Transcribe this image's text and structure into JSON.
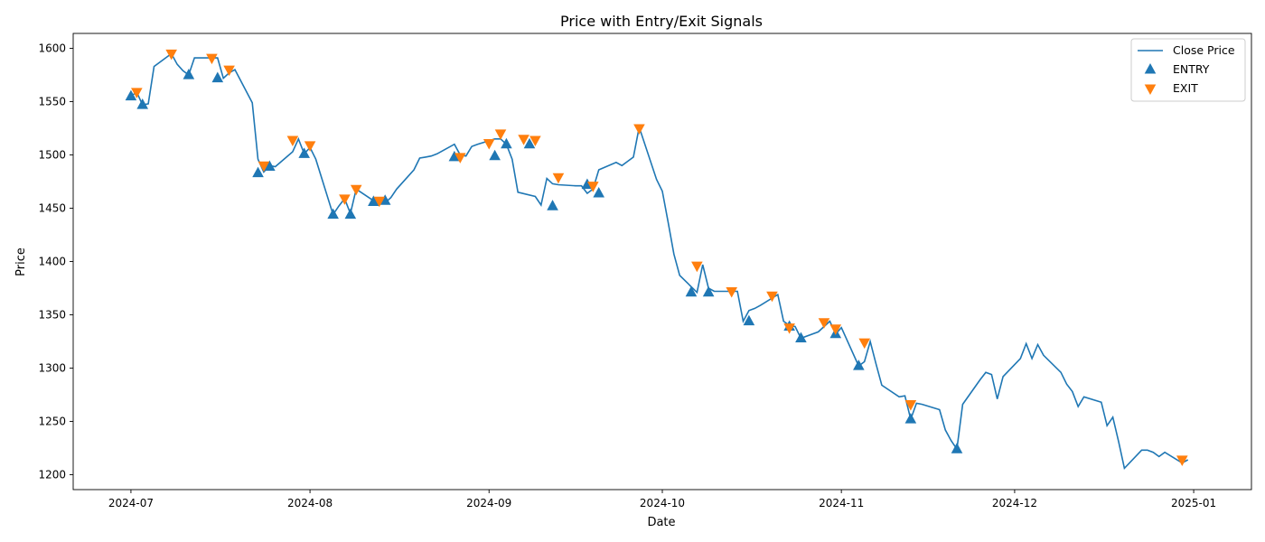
{
  "chart_data": {
    "type": "line",
    "title": "Price with Entry/Exit Signals",
    "xlabel": "Date",
    "ylabel": "Price",
    "xlim": [
      "2024-06-21",
      "2025-01-11"
    ],
    "ylim": [
      1186,
      1614
    ],
    "x_ticks": [
      "2024-07-01",
      "2024-08-01",
      "2024-09-01",
      "2024-10-01",
      "2024-11-01",
      "2024-12-01",
      "2025-01-01"
    ],
    "x_tick_labels": [
      "2024-07",
      "2024-08",
      "2024-09",
      "2024-10",
      "2024-11",
      "2024-12",
      "2025-01"
    ],
    "y_ticks": [
      1200,
      1250,
      1300,
      1350,
      1400,
      1450,
      1500,
      1550,
      1600
    ],
    "y_tick_labels": [
      "1200",
      "1250",
      "1300",
      "1350",
      "1400",
      "1450",
      "1500",
      "1550",
      "1600"
    ],
    "grid": false,
    "legend_position": "top-right",
    "colors": {
      "close": "#1f77b4",
      "entry": "#1f77b4",
      "exit": "#ff7f0e"
    },
    "series": [
      {
        "name": "Close Price",
        "kind": "line",
        "x": [
          "2024-07-01",
          "2024-07-02",
          "2024-07-03",
          "2024-07-04",
          "2024-07-05",
          "2024-07-08",
          "2024-07-09",
          "2024-07-10",
          "2024-07-11",
          "2024-07-12",
          "2024-07-15",
          "2024-07-16",
          "2024-07-17",
          "2024-07-18",
          "2024-07-19",
          "2024-07-22",
          "2024-07-23",
          "2024-07-24",
          "2024-07-25",
          "2024-07-26",
          "2024-07-29",
          "2024-07-30",
          "2024-07-31",
          "2024-08-01",
          "2024-08-02",
          "2024-08-05",
          "2024-08-06",
          "2024-08-07",
          "2024-08-08",
          "2024-08-09",
          "2024-08-12",
          "2024-08-13",
          "2024-08-14",
          "2024-08-15",
          "2024-08-16",
          "2024-08-19",
          "2024-08-20",
          "2024-08-21",
          "2024-08-22",
          "2024-08-23",
          "2024-08-26",
          "2024-08-27",
          "2024-08-28",
          "2024-08-29",
          "2024-08-30",
          "2024-09-02",
          "2024-09-03",
          "2024-09-04",
          "2024-09-05",
          "2024-09-06",
          "2024-09-09",
          "2024-09-10",
          "2024-09-11",
          "2024-09-12",
          "2024-09-13",
          "2024-09-16",
          "2024-09-17",
          "2024-09-18",
          "2024-09-19",
          "2024-09-20",
          "2024-09-23",
          "2024-09-24",
          "2024-09-25",
          "2024-09-26",
          "2024-09-27",
          "2024-09-30",
          "2024-10-01",
          "2024-10-02",
          "2024-10-03",
          "2024-10-04",
          "2024-10-07",
          "2024-10-08",
          "2024-10-09",
          "2024-10-10",
          "2024-10-11",
          "2024-10-14",
          "2024-10-15",
          "2024-10-16",
          "2024-10-17",
          "2024-10-18",
          "2024-10-21",
          "2024-10-22",
          "2024-10-23",
          "2024-10-24",
          "2024-10-25",
          "2024-10-28",
          "2024-10-29",
          "2024-10-30",
          "2024-10-31",
          "2024-11-01",
          "2024-11-04",
          "2024-11-05",
          "2024-11-06",
          "2024-11-07",
          "2024-11-08",
          "2024-11-11",
          "2024-11-12",
          "2024-11-13",
          "2024-11-14",
          "2024-11-15",
          "2024-11-18",
          "2024-11-19",
          "2024-11-20",
          "2024-11-21",
          "2024-11-22",
          "2024-11-25",
          "2024-11-26",
          "2024-11-27",
          "2024-11-28",
          "2024-11-29",
          "2024-12-02",
          "2024-12-03",
          "2024-12-04",
          "2024-12-05",
          "2024-12-06",
          "2024-12-09",
          "2024-12-10",
          "2024-12-11",
          "2024-12-12",
          "2024-12-13",
          "2024-12-16",
          "2024-12-17",
          "2024-12-18",
          "2024-12-19",
          "2024-12-20",
          "2024-12-23",
          "2024-12-24",
          "2024-12-25",
          "2024-12-26",
          "2024-12-27",
          "2024-12-30",
          "2024-12-31"
        ],
        "y": [
          1555,
          1559,
          1547,
          1548,
          1583,
          1595,
          1585,
          1579,
          1575,
          1591,
          1591,
          1591,
          1572,
          1577,
          1580,
          1549,
          1496,
          1484,
          1490,
          1489,
          1503,
          1515,
          1501,
          1507,
          1496,
          1444,
          1452,
          1459,
          1445,
          1468,
          1457,
          1457,
          1455,
          1460,
          1468,
          1486,
          1497,
          1498,
          1499,
          1501,
          1510,
          1500,
          1499,
          1508,
          1510,
          1515,
          1515,
          1510,
          1496,
          1465,
          1461,
          1453,
          1478,
          1473,
          1472,
          1471,
          1471,
          1464,
          1468,
          1486,
          1493,
          1490,
          1494,
          1498,
          1526,
          1477,
          1466,
          1437,
          1407,
          1387,
          1371,
          1397,
          1375,
          1372,
          1372,
          1372,
          1344,
          1354,
          1356,
          1359,
          1369,
          1344,
          1340,
          1339,
          1328,
          1334,
          1339,
          1344,
          1332,
          1338,
          1302,
          1306,
          1325,
          1304,
          1284,
          1273,
          1274,
          1252,
          1267,
          1266,
          1261,
          1242,
          1232,
          1224,
          1266,
          1289,
          1296,
          1294,
          1271,
          1292,
          1309,
          1323,
          1309,
          1322,
          1312,
          1296,
          1285,
          1278,
          1264,
          1273,
          1268,
          1246,
          1254,
          1231,
          1206,
          1223,
          1223,
          1221,
          1217,
          1221,
          1211,
          1214
        ]
      },
      {
        "name": "ENTRY",
        "kind": "marker",
        "marker": "triangle-up",
        "x": [
          "2024-07-01",
          "2024-07-03",
          "2024-07-11",
          "2024-07-16",
          "2024-07-23",
          "2024-07-25",
          "2024-07-31",
          "2024-08-05",
          "2024-08-08",
          "2024-08-12",
          "2024-08-14",
          "2024-08-26",
          "2024-09-02",
          "2024-09-04",
          "2024-09-08",
          "2024-09-12",
          "2024-09-18",
          "2024-09-20",
          "2024-10-06",
          "2024-10-09",
          "2024-10-16",
          "2024-10-23",
          "2024-10-25",
          "2024-10-31",
          "2024-11-04",
          "2024-11-13",
          "2024-11-21"
        ],
        "y": [
          1555,
          1547,
          1575,
          1572,
          1483,
          1489,
          1501,
          1444,
          1444,
          1456,
          1457,
          1498,
          1499,
          1510,
          1510,
          1452,
          1472,
          1464,
          1371,
          1371,
          1344,
          1339,
          1328,
          1332,
          1302,
          1252,
          1224
        ]
      },
      {
        "name": "EXIT",
        "kind": "marker",
        "marker": "triangle-down",
        "x": [
          "2024-07-02",
          "2024-07-08",
          "2024-07-15",
          "2024-07-18",
          "2024-07-24",
          "2024-07-29",
          "2024-08-01",
          "2024-08-07",
          "2024-08-09",
          "2024-08-13",
          "2024-08-27",
          "2024-09-01",
          "2024-09-03",
          "2024-09-07",
          "2024-09-09",
          "2024-09-13",
          "2024-09-19",
          "2024-09-27",
          "2024-10-07",
          "2024-10-13",
          "2024-10-20",
          "2024-10-23",
          "2024-10-29",
          "2024-10-31",
          "2024-11-05",
          "2024-11-13",
          "2024-12-30"
        ],
        "y": [
          1559,
          1595,
          1591,
          1580,
          1490,
          1514,
          1509,
          1459,
          1468,
          1457,
          1498,
          1511,
          1520,
          1515,
          1514,
          1479,
          1471,
          1525,
          1396,
          1372,
          1368,
          1338,
          1343,
          1337,
          1324,
          1266,
          1214
        ]
      }
    ]
  }
}
